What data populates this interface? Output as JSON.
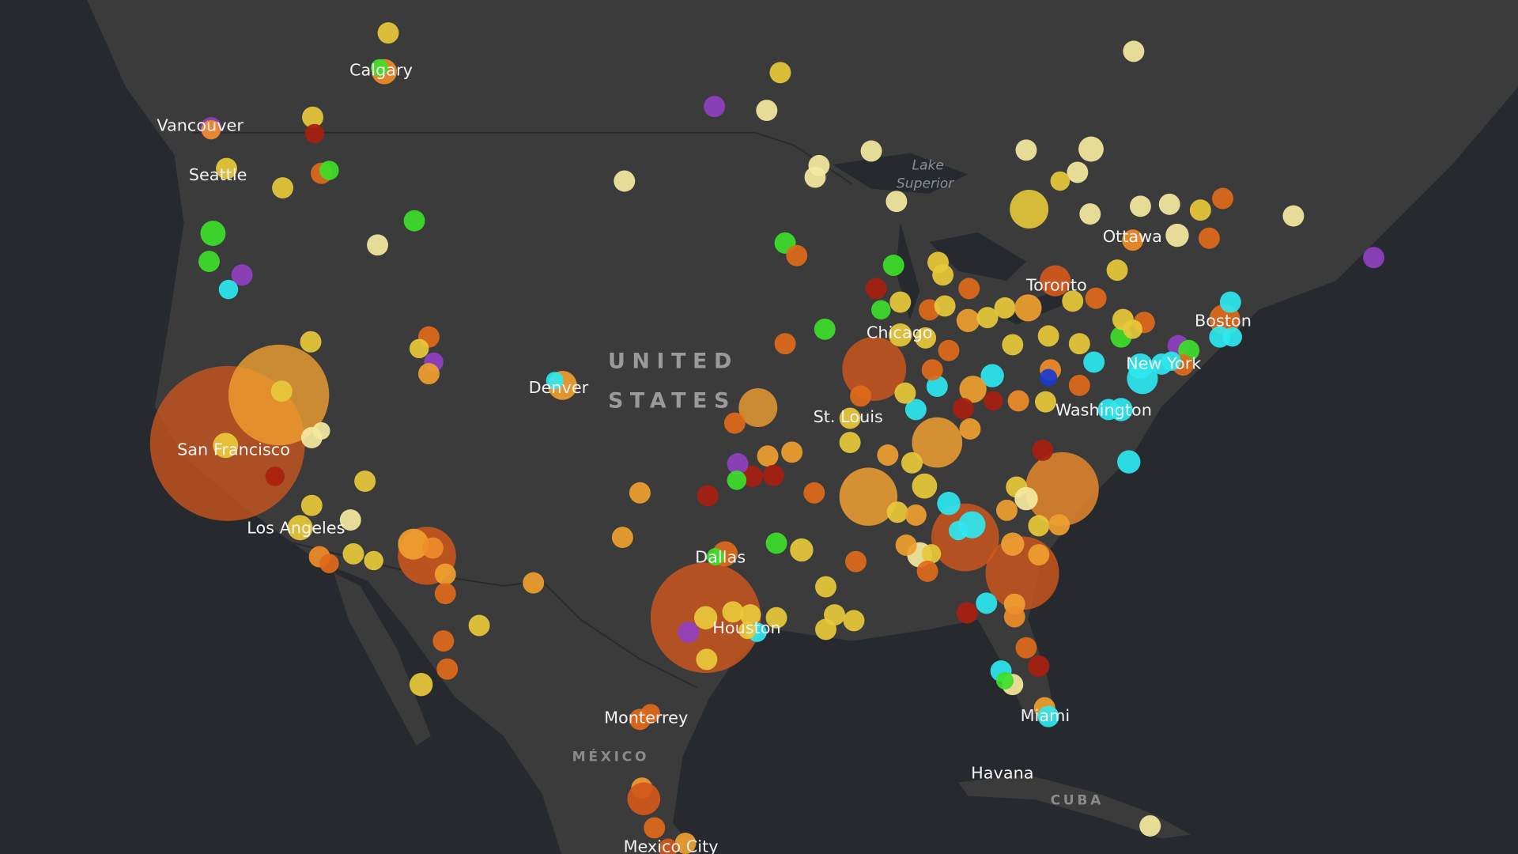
{
  "map": {
    "cities": [
      "Calgary",
      "Vancouver",
      "Seattle",
      "San Francisco",
      "Los Angeles",
      "Denver",
      "Dallas",
      "Houston",
      "St. Louis",
      "Chicago",
      "Toronto",
      "Ottawa",
      "Boston",
      "New York",
      "Washington",
      "Miami",
      "Monterrey",
      "Havana",
      "Mexico City"
    ],
    "countries": {
      "us": [
        "UNITED",
        "STATES"
      ],
      "mexico": "MÉXICO",
      "cuba": "CUBA"
    },
    "water": [
      "Lake",
      "Superior"
    ]
  }
}
